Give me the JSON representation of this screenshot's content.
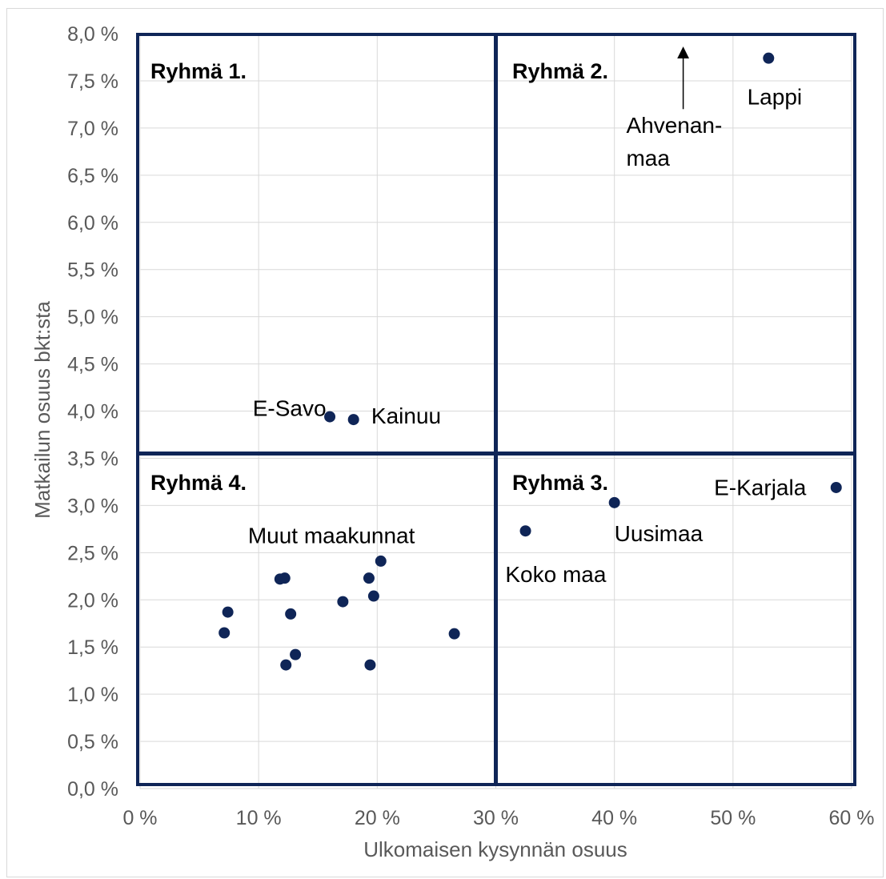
{
  "chart_data": {
    "type": "scatter",
    "title": "",
    "xlabel": "Ulkomaisen kysynnän osuus",
    "ylabel": "Matkailun osuus bkt:sta",
    "xlim": [
      0,
      60
    ],
    "ylim": [
      0,
      8
    ],
    "x_ticks": [
      0,
      10,
      20,
      30,
      40,
      50,
      60
    ],
    "x_tick_labels": [
      "0 %",
      "10 %",
      "20 %",
      "30 %",
      "40 %",
      "50 %",
      "60 %"
    ],
    "y_ticks": [
      0,
      0.5,
      1,
      1.5,
      2,
      2.5,
      3,
      3.5,
      4,
      4.5,
      5,
      5.5,
      6,
      6.5,
      7,
      7.5,
      8
    ],
    "y_tick_labels": [
      "0,0 %",
      "0,5 %",
      "1,0 %",
      "1,5 %",
      "2,0 %",
      "2,5 %",
      "3,0 %",
      "3,5 %",
      "4,0 %",
      "4,5 %",
      "5,0 %",
      "5,5 %",
      "6,0 %",
      "6,5 %",
      "7,0 %",
      "7,5 %",
      "8,0 %"
    ],
    "grid": true,
    "marker_color": "#0f2557",
    "quadrant_color": "#0f2557",
    "quadrant_divider": {
      "x": 30,
      "y": 3.55
    },
    "groups": [
      {
        "label": "Ryhmä 1.",
        "quadrant": "top-left"
      },
      {
        "label": "Ryhmä 2.",
        "quadrant": "top-right"
      },
      {
        "label": "Ryhmä 3.",
        "quadrant": "bottom-right"
      },
      {
        "label": "Ryhmä 4.",
        "quadrant": "bottom-left"
      }
    ],
    "points": [
      {
        "label": "Lappi",
        "x": 53.0,
        "y": 7.74
      },
      {
        "label": "E-Savo",
        "x": 16.0,
        "y": 3.94
      },
      {
        "label": "Kainuu",
        "x": 18.0,
        "y": 3.91
      },
      {
        "label": "E-Karjala",
        "x": 58.7,
        "y": 3.19
      },
      {
        "label": "Uusimaa",
        "x": 40.0,
        "y": 3.03
      },
      {
        "label": "Koko maa",
        "x": 32.5,
        "y": 2.73
      },
      {
        "label": "Muut maakunnat",
        "x": 20.3,
        "y": 2.41
      },
      {
        "label": "",
        "x": 11.8,
        "y": 2.22
      },
      {
        "label": "",
        "x": 12.2,
        "y": 2.23
      },
      {
        "label": "",
        "x": 19.3,
        "y": 2.23
      },
      {
        "label": "",
        "x": 19.7,
        "y": 2.04
      },
      {
        "label": "",
        "x": 17.1,
        "y": 1.98
      },
      {
        "label": "",
        "x": 7.4,
        "y": 1.87
      },
      {
        "label": "",
        "x": 12.7,
        "y": 1.85
      },
      {
        "label": "",
        "x": 7.1,
        "y": 1.65
      },
      {
        "label": "",
        "x": 26.5,
        "y": 1.64
      },
      {
        "label": "",
        "x": 13.1,
        "y": 1.42
      },
      {
        "label": "",
        "x": 12.3,
        "y": 1.31
      },
      {
        "label": "",
        "x": 19.4,
        "y": 1.31
      }
    ],
    "annotations": [
      {
        "text": "Ahvenan-",
        "x": 41,
        "y": 6.95
      },
      {
        "text": "maa",
        "x": 41,
        "y": 6.6
      },
      {
        "text": "Lappi",
        "x": 51.2,
        "y": 7.25
      },
      {
        "text": "E-Savo",
        "x": 9.5,
        "y": 3.95
      },
      {
        "text": "Kainuu",
        "x": 19.5,
        "y": 3.87
      },
      {
        "text": "E-Karjala",
        "x": 48.4,
        "y": 3.11
      },
      {
        "text": "Uusimaa",
        "x": 40.0,
        "y": 2.62
      },
      {
        "text": "Koko maa",
        "x": 30.8,
        "y": 2.19
      },
      {
        "text": "Muut maakunnat",
        "x": 9.1,
        "y": 2.6
      }
    ],
    "arrow": {
      "label": "Ahvenanmaa",
      "x": 45.8,
      "y_from": 7.2,
      "y_to": 7.85
    }
  }
}
